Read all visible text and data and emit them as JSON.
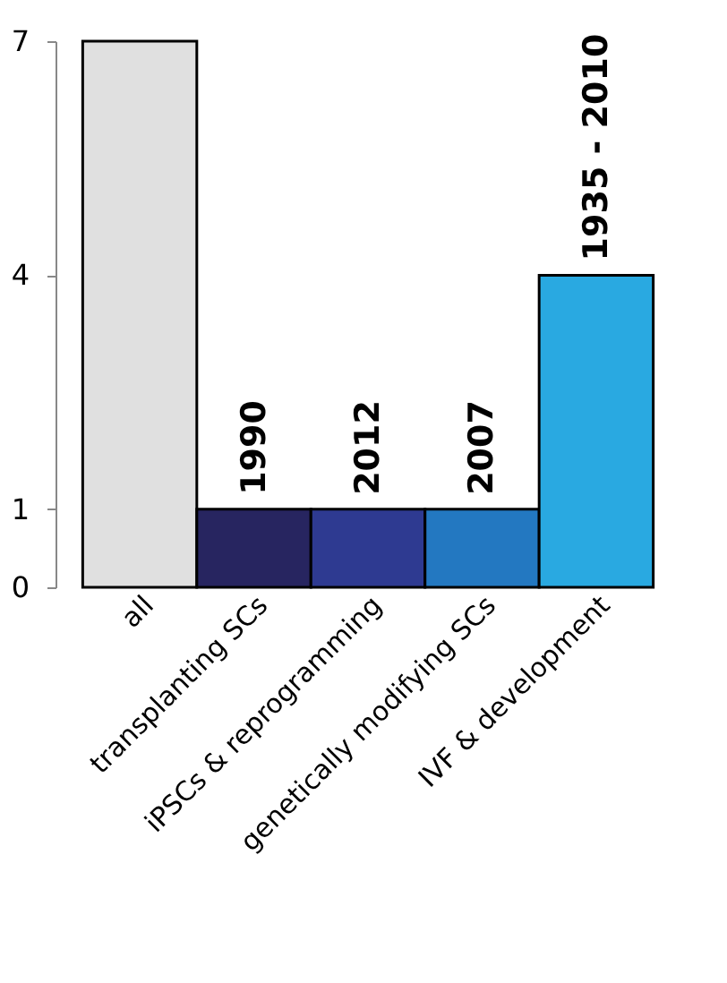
{
  "chart_data": {
    "type": "bar",
    "categories": [
      "all",
      "transplanting SCs",
      "iPSCs & reprogramming",
      "genetically modifying SCs",
      "IVF & development"
    ],
    "values": [
      7,
      1,
      1,
      1,
      4
    ],
    "colors": [
      "#e0e0e0",
      "#272560",
      "#2e3a91",
      "#2378c1",
      "#29a9e1"
    ],
    "annotations": [
      {
        "text": "1990",
        "x": "transplanting SCs",
        "y": 1
      },
      {
        "text": "2012",
        "x": "iPSCs & reprogramming",
        "y": 1
      },
      {
        "text": "2007",
        "x": "genetically modifying SCs",
        "y": 1
      },
      {
        "text": "1935 - 2010",
        "x": "IVF & development",
        "y": 4
      }
    ],
    "ylim": [
      0,
      7
    ],
    "yticks": [
      0,
      1,
      4,
      7
    ],
    "grid": false
  }
}
